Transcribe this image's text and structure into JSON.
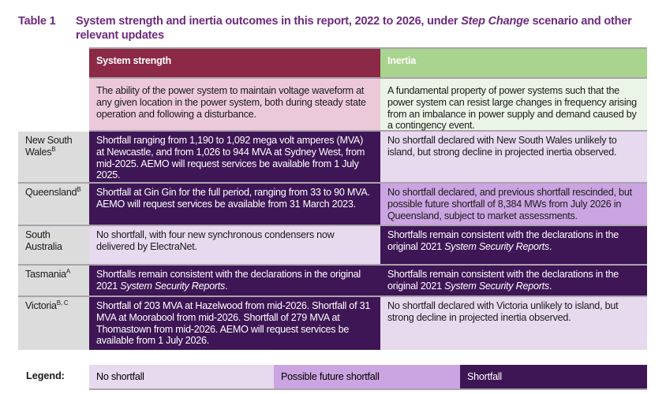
{
  "title": {
    "number": "Table 1",
    "text_before": "System strength and inertia outcomes in this report, 2022 to 2026, under ",
    "text_italic": "Step Change",
    "text_after": " scenario and other relevant updates"
  },
  "headers": {
    "system_strength": "System strength",
    "inertia": "Inertia"
  },
  "definitions": {
    "system_strength": "The ability of the power system to maintain voltage waveform at any given location in the power system, both during steady state operation and following a disturbance.",
    "inertia": "A fundamental property of power systems such that the power system can resist large changes in frequency arising from an imbalance in power supply and demand caused by a contingency event."
  },
  "rows": [
    {
      "state": "New South Wales",
      "note": "B",
      "system_strength": {
        "status": "shortfall",
        "text": "Shortfall ranging from 1,190 to 1,092 mega volt amperes (MVA) at Newcastle, and from 1,026 to 944 MVA at Sydney West, from mid-2025. AEMO will request services be available from 1 July 2025."
      },
      "inertia": {
        "status": "no-shortfall",
        "text": "No shortfall declared with New South Wales unlikely to island, but strong decline in projected inertia observed."
      }
    },
    {
      "state": "Queensland",
      "note": "B",
      "system_strength": {
        "status": "shortfall",
        "text": "Shortfall at Gin Gin for the full period, ranging from 33 to 90 MVA. AEMO will request services be available from 31 March 2023."
      },
      "inertia": {
        "status": "possible-future-shortfall",
        "text": "No shortfall declared, and previous shortfall rescinded, but possible future shortfall of 8,384 MWs from July 2026 in Queensland, subject to market assessments."
      }
    },
    {
      "state": "South Australia",
      "note": "",
      "system_strength": {
        "status": "no-shortfall",
        "text": "No shortfall, with four new synchronous condensers now delivered by ElectraNet."
      },
      "inertia": {
        "status": "shortfall",
        "text": "Shortfalls remain consistent with the declarations in the original 2021 ",
        "italic": "System Security Reports",
        "after": "."
      }
    },
    {
      "state": "Tasmania",
      "note": "A",
      "system_strength": {
        "status": "shortfall",
        "text": "Shortfalls remain consistent with the declarations in the original 2021 ",
        "italic": "System Security Reports",
        "after": "."
      },
      "inertia": {
        "status": "shortfall",
        "text": "Shortfalls remain consistent with the declarations in the original 2021 ",
        "italic": "System Security Reports",
        "after": "."
      }
    },
    {
      "state": "Victoria",
      "note": "B, C",
      "system_strength": {
        "status": "shortfall",
        "text": "Shortfall of 203 MVA at Hazelwood from mid-2026. Shortfall of 31 MVA at Moorabool from mid-2026. Shortfall of 279 MVA at Thomastown from mid-2026. AEMO will request services be available from 1 July 2026."
      },
      "inertia": {
        "status": "no-shortfall",
        "text": "No shortfall declared with Victoria unlikely to island, but strong decline in projected inertia observed."
      }
    }
  ],
  "legend": {
    "label": "Legend:",
    "items": [
      "No shortfall",
      "Possible future shortfall",
      "Shortfall"
    ]
  },
  "colors": {
    "title": "#6e2a7e",
    "system_strength_header": "#8b2946",
    "inertia_header": "#a9d48d",
    "shortfall": "#3e1655",
    "possible_future_shortfall": "#cba5e1",
    "no_shortfall": "#e7d9ee"
  }
}
